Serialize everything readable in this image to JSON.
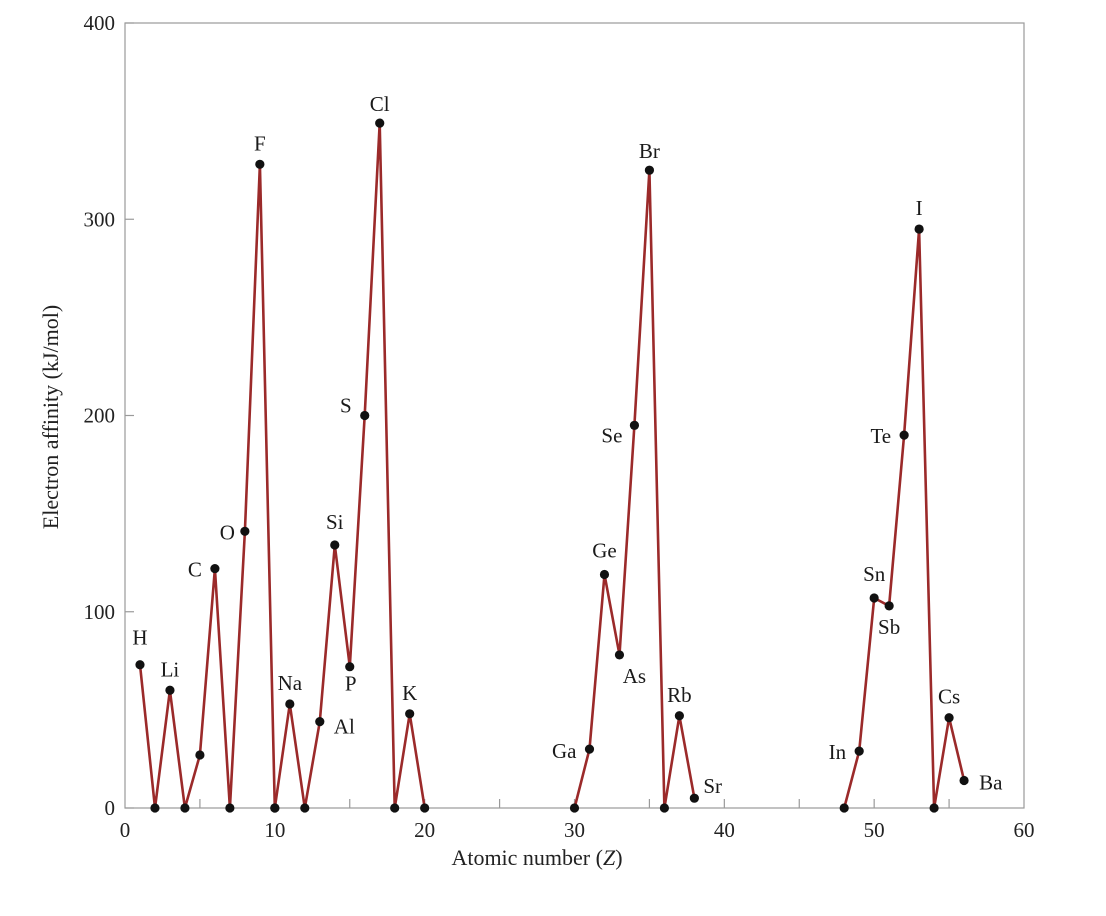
{
  "chart_data": {
    "type": "line",
    "xlabel": "Atomic number (",
    "xlabel_var": "Z",
    "xlabel_close": ")",
    "ylabel": "Electron affinity (kJ/mol)",
    "xlim": [
      0,
      60
    ],
    "ylim": [
      0,
      400
    ],
    "xticks": [
      0,
      10,
      20,
      30,
      40,
      50,
      60
    ],
    "yticks": [
      0,
      100,
      200,
      300,
      400
    ],
    "grid": false,
    "line_color": "#9b2a2a",
    "marker_color": "#111111",
    "series": [
      {
        "points": [
          {
            "x": 1,
            "y": 73,
            "label": "H"
          },
          {
            "x": 2,
            "y": 0,
            "label": ""
          },
          {
            "x": 3,
            "y": 60,
            "label": "Li"
          },
          {
            "x": 4,
            "y": 0,
            "label": ""
          },
          {
            "x": 5,
            "y": 27,
            "label": ""
          },
          {
            "x": 6,
            "y": 122,
            "label": "C"
          },
          {
            "x": 7,
            "y": 0,
            "label": ""
          },
          {
            "x": 8,
            "y": 141,
            "label": "O"
          },
          {
            "x": 9,
            "y": 328,
            "label": "F"
          },
          {
            "x": 10,
            "y": 0,
            "label": ""
          }
        ]
      },
      {
        "points": [
          {
            "x": 10,
            "y": 0,
            "label": ""
          },
          {
            "x": 11,
            "y": 53,
            "label": "Na"
          },
          {
            "x": 12,
            "y": 0,
            "label": ""
          },
          {
            "x": 13,
            "y": 44,
            "label": "Al"
          },
          {
            "x": 14,
            "y": 134,
            "label": "Si"
          },
          {
            "x": 15,
            "y": 72,
            "label": "P"
          },
          {
            "x": 16,
            "y": 200,
            "label": "S"
          },
          {
            "x": 17,
            "y": 349,
            "label": "Cl"
          },
          {
            "x": 18,
            "y": 0,
            "label": ""
          },
          {
            "x": 19,
            "y": 48,
            "label": "K"
          },
          {
            "x": 20,
            "y": 0,
            "label": ""
          }
        ]
      },
      {
        "points": [
          {
            "x": 30,
            "y": 0,
            "label": ""
          },
          {
            "x": 31,
            "y": 30,
            "label": "Ga"
          },
          {
            "x": 32,
            "y": 119,
            "label": "Ge"
          },
          {
            "x": 33,
            "y": 78,
            "label": "As"
          },
          {
            "x": 34,
            "y": 195,
            "label": "Se"
          },
          {
            "x": 35,
            "y": 325,
            "label": "Br"
          },
          {
            "x": 36,
            "y": 0,
            "label": ""
          },
          {
            "x": 37,
            "y": 47,
            "label": "Rb"
          },
          {
            "x": 38,
            "y": 5,
            "label": "Sr"
          }
        ]
      },
      {
        "points": [
          {
            "x": 48,
            "y": 0,
            "label": ""
          },
          {
            "x": 49,
            "y": 29,
            "label": "In"
          },
          {
            "x": 50,
            "y": 107,
            "label": "Sn"
          },
          {
            "x": 51,
            "y": 103,
            "label": "Sb"
          },
          {
            "x": 52,
            "y": 190,
            "label": "Te"
          },
          {
            "x": 53,
            "y": 295,
            "label": "I"
          },
          {
            "x": 54,
            "y": 0,
            "label": ""
          },
          {
            "x": 55,
            "y": 46,
            "label": "Cs"
          },
          {
            "x": 56,
            "y": 14,
            "label": "Ba"
          }
        ]
      }
    ]
  }
}
